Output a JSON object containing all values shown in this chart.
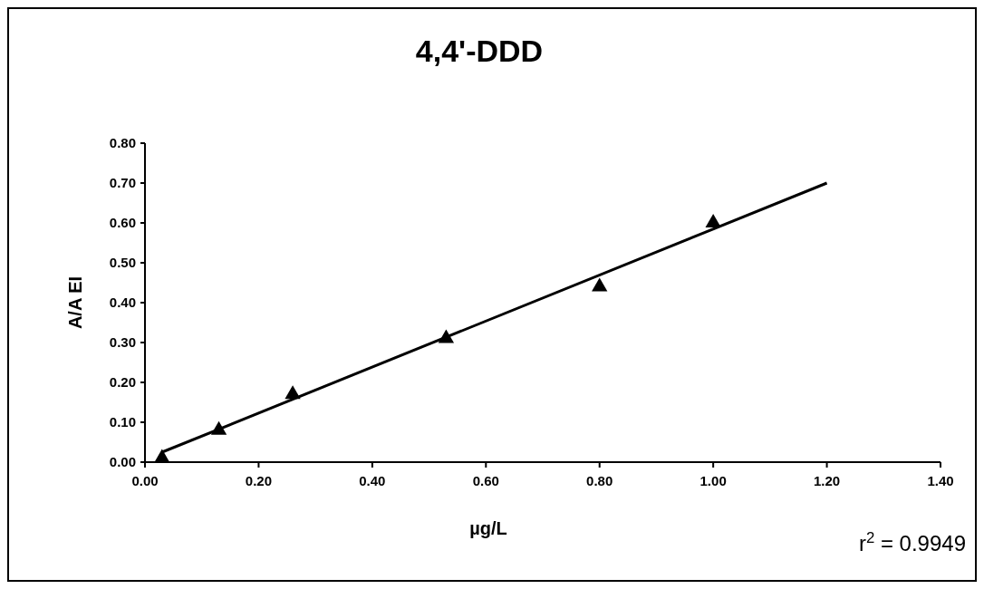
{
  "chart_data": {
    "type": "scatter",
    "title": "4,4'-DDD",
    "xlabel": "µg/L",
    "ylabel": "A/A EI",
    "annotations": [
      "r$^{2}$ = 0.9949"
    ],
    "xlim": [
      0,
      1.4
    ],
    "xticks": [
      {
        "value": 0,
        "label": "0.00"
      },
      {
        "value": 0.2,
        "label": "0.20"
      },
      {
        "value": 0.4,
        "label": "0.40"
      },
      {
        "value": 0.6,
        "label": "0.60"
      },
      {
        "value": 0.8,
        "label": "0.80"
      },
      {
        "value": 1,
        "label": "1.00"
      },
      {
        "value": 1.2,
        "label": "1.20"
      },
      {
        "value": 1.4,
        "label": "1.40"
      }
    ],
    "ylim": [
      0,
      0.8
    ],
    "yticks": [
      {
        "value": 0,
        "label": "0.00"
      },
      {
        "value": 0.1,
        "label": "0.10"
      },
      {
        "value": 0.2,
        "label": "0.20"
      },
      {
        "value": 0.3,
        "label": "0.30"
      },
      {
        "value": 0.4,
        "label": "0.40"
      },
      {
        "value": 0.5,
        "label": "0.50"
      },
      {
        "value": 0.6,
        "label": "0.60"
      },
      {
        "value": 0.7,
        "label": "0.70"
      },
      {
        "value": 0.8,
        "label": "0.80"
      }
    ],
    "grid": false,
    "series": [
      {
        "color": "#000000",
        "marker": "triangle",
        "x": [
          0.03,
          0.13,
          0.26,
          0.53,
          0.8,
          1.0
        ],
        "values": [
          0.01,
          0.08,
          0.17,
          0.31,
          0.44,
          0.6
        ]
      },
      {
        "type": "line",
        "color": "#000000",
        "marker": "none",
        "line_style": "solid",
        "x": [
          0.03,
          1.2
        ],
        "values": [
          0.025,
          0.7
        ]
      }
    ]
  }
}
